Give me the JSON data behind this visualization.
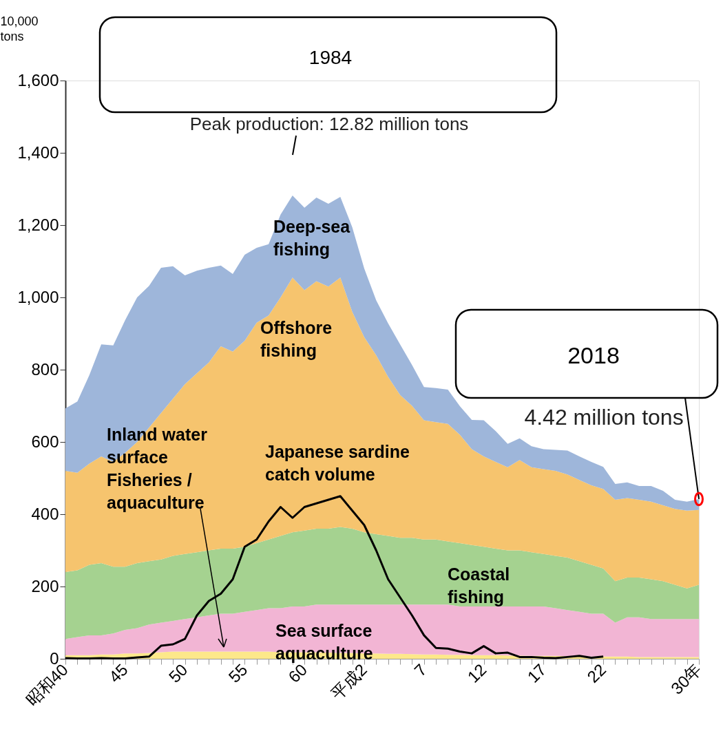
{
  "chart_data": {
    "type": "area",
    "stacked": true,
    "legend": false,
    "grid": false,
    "ylabel": "10,000 tons",
    "categories": [
      "昭和40",
      null,
      null,
      null,
      null,
      "45",
      null,
      null,
      null,
      null,
      "50",
      null,
      null,
      null,
      null,
      "55",
      null,
      null,
      null,
      null,
      "60",
      null,
      null,
      null,
      null,
      "平成2",
      null,
      null,
      null,
      null,
      "7",
      null,
      null,
      null,
      null,
      "12",
      null,
      null,
      null,
      null,
      "17",
      null,
      null,
      null,
      null,
      "22",
      null,
      null,
      null,
      null,
      null,
      null,
      null,
      "30年"
    ],
    "ylim": [
      0,
      1600
    ],
    "yticks": [
      0,
      {
        "value": 200,
        "label": "200"
      },
      {
        "value": 400,
        "label": "400"
      },
      {
        "value": 600,
        "label": "600"
      },
      {
        "value": 800,
        "label": "800"
      },
      {
        "value": 1000,
        "label": "1,000"
      },
      {
        "value": 1200,
        "label": "1,200"
      },
      {
        "value": 1400,
        "label": "1,400"
      },
      {
        "value": 1600,
        "label": "1,600"
      }
    ],
    "series": [
      {
        "name": "Inland water surface Fisheries / aquaculture",
        "color": "#fde88a",
        "values": [
          10,
          10,
          10,
          12,
          12,
          15,
          15,
          16,
          18,
          20,
          20,
          20,
          20,
          20,
          20,
          20,
          20,
          20,
          18,
          18,
          18,
          18,
          17,
          16,
          16,
          15,
          15,
          14,
          14,
          13,
          12,
          12,
          11,
          11,
          10,
          10,
          10,
          9,
          9,
          8,
          8,
          8,
          7,
          7,
          6,
          6,
          6,
          6,
          5,
          5,
          5,
          5,
          5,
          5
        ]
      },
      {
        "name": "Sea surface aquaculture",
        "color": "#f2b5d4",
        "values": [
          45,
          50,
          55,
          53,
          58,
          65,
          70,
          79,
          82,
          85,
          90,
          95,
          100,
          105,
          105,
          110,
          115,
          120,
          122,
          127,
          127,
          132,
          133,
          134,
          134,
          135,
          135,
          136,
          136,
          137,
          138,
          138,
          139,
          134,
          135,
          135,
          135,
          136,
          136,
          137,
          137,
          132,
          128,
          123,
          119,
          119,
          94,
          109,
          110,
          105,
          105,
          105,
          105,
          105
        ]
      },
      {
        "name": "Coastal fishing",
        "color": "#a5d290",
        "values": [
          185,
          185,
          195,
          200,
          185,
          175,
          180,
          175,
          175,
          180,
          180,
          180,
          180,
          180,
          180,
          180,
          185,
          190,
          200,
          205,
          210,
          210,
          210,
          215,
          210,
          200,
          195,
          190,
          185,
          185,
          180,
          180,
          175,
          175,
          170,
          165,
          160,
          155,
          155,
          150,
          145,
          145,
          145,
          140,
          135,
          125,
          115,
          110,
          110,
          110,
          105,
          95,
          85,
          95
        ]
      },
      {
        "name": "Offshore fishing",
        "color": "#f6c46e",
        "values": [
          280,
          270,
          280,
          295,
          290,
          315,
          335,
          370,
          405,
          435,
          470,
          495,
          520,
          560,
          545,
          570,
          610,
          620,
          660,
          705,
          665,
          685,
          670,
          690,
          600,
          540,
          495,
          440,
          395,
          365,
          330,
          325,
          325,
          300,
          265,
          250,
          240,
          230,
          250,
          235,
          235,
          235,
          230,
          225,
          220,
          220,
          225,
          220,
          215,
          215,
          210,
          210,
          215,
          207
        ]
      },
      {
        "name": "Deep-sea fishing",
        "color": "#9eb6da",
        "values": [
          173,
          197,
          245,
          310,
          322,
          367,
          400,
          392,
          402,
          366,
          301,
          284,
          262,
          223,
          215,
          238,
          207,
          197,
          229,
          227,
          228,
          231,
          229,
          223,
          234,
          190,
          152,
          148,
          140,
          113,
          92,
          94,
          95,
          79,
          81,
          100,
          85,
          65,
          60,
          58,
          55,
          58,
          66,
          65,
          65,
          61,
          44,
          43,
          38,
          43,
          40,
          25,
          25,
          30
        ]
      },
      {
        "name": "Japanese sardine catch volume",
        "type": "line",
        "color": "#000000",
        "values": [
          2,
          1,
          1,
          2,
          1,
          1,
          4,
          6,
          36,
          40,
          55,
          120,
          160,
          180,
          220,
          310,
          330,
          380,
          420,
          390,
          420,
          430,
          440,
          450,
          410,
          370,
          300,
          220,
          170,
          120,
          65,
          30,
          28,
          20,
          15,
          35,
          15,
          17,
          5,
          5,
          3,
          2,
          5,
          8,
          3,
          6,
          null,
          null,
          null,
          null,
          null,
          null,
          null,
          null
        ]
      }
    ],
    "annotations": [
      "1984",
      "Peak production: 12.82 million tons",
      "2018",
      {
        "text": "4.42 million tons",
        "x": "30年",
        "y": 442
      }
    ]
  }
}
